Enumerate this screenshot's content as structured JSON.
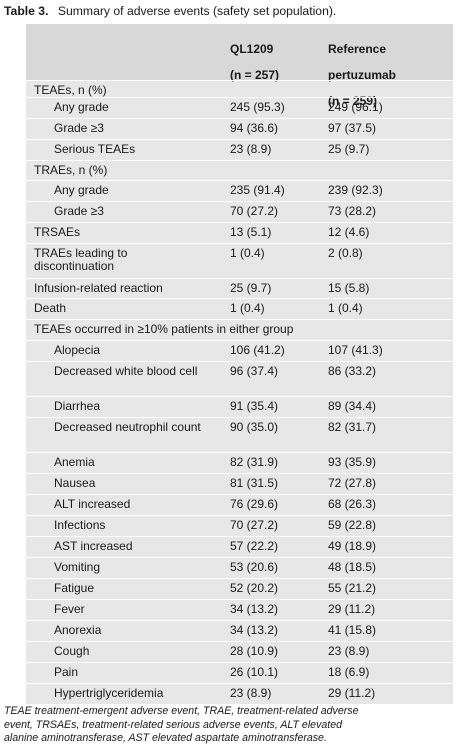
{
  "caption": {
    "number": "Table 3.",
    "title": "Summary of adverse events (safety set population)."
  },
  "columns": {
    "col1_line1": "QL1209",
    "col1_line2": "(n = 257)",
    "col2_line1": "Reference",
    "col2_line2": "pertuzumab",
    "col2_line3": "(n = 259)"
  },
  "rows": [
    {
      "label": "TEAEs, n (%)",
      "c1": "",
      "c2": ""
    },
    {
      "label": "Any grade",
      "c1": "245 (95.3)",
      "c2": "249 (96.1)"
    },
    {
      "label": "Grade ≥3",
      "c1": "94 (36.6)",
      "c2": "97 (37.5)"
    },
    {
      "label": "Serious TEAEs",
      "c1": "23 (8.9)",
      "c2": "25 (9.7)"
    },
    {
      "label": "TRAEs, n (%)",
      "c1": "",
      "c2": ""
    },
    {
      "label": "Any grade",
      "c1": "235 (91.4)",
      "c2": "239 (92.3)"
    },
    {
      "label": "Grade ≥3",
      "c1": "70 (27.2)",
      "c2": "73 (28.2)"
    },
    {
      "label": "TRSAEs",
      "c1": "13 (5.1)",
      "c2": "12 (4.6)"
    },
    {
      "label": "TRAEs leading to discontinuation",
      "c1": "1 (0.4)",
      "c2": "2 (0.8)"
    },
    {
      "label": "Infusion-related reaction",
      "c1": "25 (9.7)",
      "c2": "15 (5.8)"
    },
    {
      "label": "Death",
      "c1": "1 (0.4)",
      "c2": "1 (0.4)"
    },
    {
      "label": "TEAEs occurred in ≥10% patients in either group",
      "c1": "",
      "c2": ""
    },
    {
      "label": "Alopecia",
      "c1": "106 (41.2)",
      "c2": "107 (41.3)"
    },
    {
      "label": "Decreased white blood cell",
      "c1": "96 (37.4)",
      "c2": "86 (33.2)"
    },
    {
      "label": "Diarrhea",
      "c1": "91 (35.4)",
      "c2": "89 (34.4)"
    },
    {
      "label": "Decreased neutrophil count",
      "c1": "90 (35.0)",
      "c2": "82 (31.7)"
    },
    {
      "label": "Anemia",
      "c1": "82 (31.9)",
      "c2": "93 (35.9)"
    },
    {
      "label": "Nausea",
      "c1": "81 (31.5)",
      "c2": "72 (27.8)"
    },
    {
      "label": "ALT increased",
      "c1": "76 (29.6)",
      "c2": "68 (26.3)"
    },
    {
      "label": "Infections",
      "c1": "70 (27.2)",
      "c2": "59 (22.8)"
    },
    {
      "label": "AST increased",
      "c1": "57 (22.2)",
      "c2": "49 (18.9)"
    },
    {
      "label": "Vomiting",
      "c1": "53 (20.6)",
      "c2": "48 (18.5)"
    },
    {
      "label": "Fatigue",
      "c1": "52 (20.2)",
      "c2": "55 (21.2)"
    },
    {
      "label": "Fever",
      "c1": "34 (13.2)",
      "c2": "29 (11.2)"
    },
    {
      "label": "Anorexia",
      "c1": "34 (13.2)",
      "c2": "41 (15.8)"
    },
    {
      "label": "Cough",
      "c1": "28 (10.9)",
      "c2": "23 (8.9)"
    },
    {
      "label": "Pain",
      "c1": "26 (10.1)",
      "c2": "18 (6.9)"
    },
    {
      "label": "Hypertriglyceridemia",
      "c1": "23 (8.9)",
      "c2": "29 (11.2)"
    }
  ],
  "footnote": {
    "line1": "TEAE treatment-emergent adverse event, TRAE, treatment-related adverse",
    "line2": "event, TRSAEs, treatment-related serious adverse events, ALT elevated",
    "line3": "alanine aminotransferase, AST elevated aspartate aminotransferase."
  }
}
